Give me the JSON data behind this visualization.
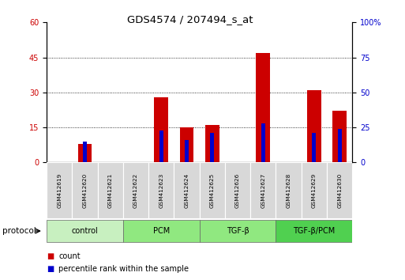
{
  "title": "GDS4574 / 207494_s_at",
  "samples": [
    "GSM412619",
    "GSM412620",
    "GSM412621",
    "GSM412622",
    "GSM412623",
    "GSM412624",
    "GSM412625",
    "GSM412626",
    "GSM412627",
    "GSM412628",
    "GSM412629",
    "GSM412630"
  ],
  "count_values": [
    0,
    8,
    0,
    0,
    28,
    15,
    16,
    0,
    47,
    0,
    31,
    22
  ],
  "percentile_values": [
    0,
    15,
    0,
    0,
    23,
    16,
    21,
    0,
    28,
    0,
    21,
    24
  ],
  "percentile_shown": [
    false,
    true,
    false,
    false,
    true,
    true,
    true,
    false,
    true,
    false,
    true,
    true
  ],
  "groups": [
    {
      "label": "control",
      "start": 0,
      "end": 3
    },
    {
      "label": "PCM",
      "start": 3,
      "end": 6
    },
    {
      "label": "TGF-β",
      "start": 6,
      "end": 9
    },
    {
      "label": "TGF-β/PCM",
      "start": 9,
      "end": 12
    }
  ],
  "group_colors": [
    "#c8f0c0",
    "#90e880",
    "#90e880",
    "#50d050"
  ],
  "ylim_left": [
    0,
    60
  ],
  "ylim_right": [
    0,
    100
  ],
  "yticks_left": [
    0,
    15,
    30,
    45,
    60
  ],
  "yticks_right": [
    0,
    25,
    50,
    75,
    100
  ],
  "bar_color": "#cc0000",
  "percentile_color": "#0000cc",
  "background_color": "#ffffff",
  "tick_label_color_left": "#cc0000",
  "tick_label_color_right": "#0000cc",
  "bar_width": 0.55,
  "percentile_bar_width": 0.15,
  "protocol_label": "protocol"
}
